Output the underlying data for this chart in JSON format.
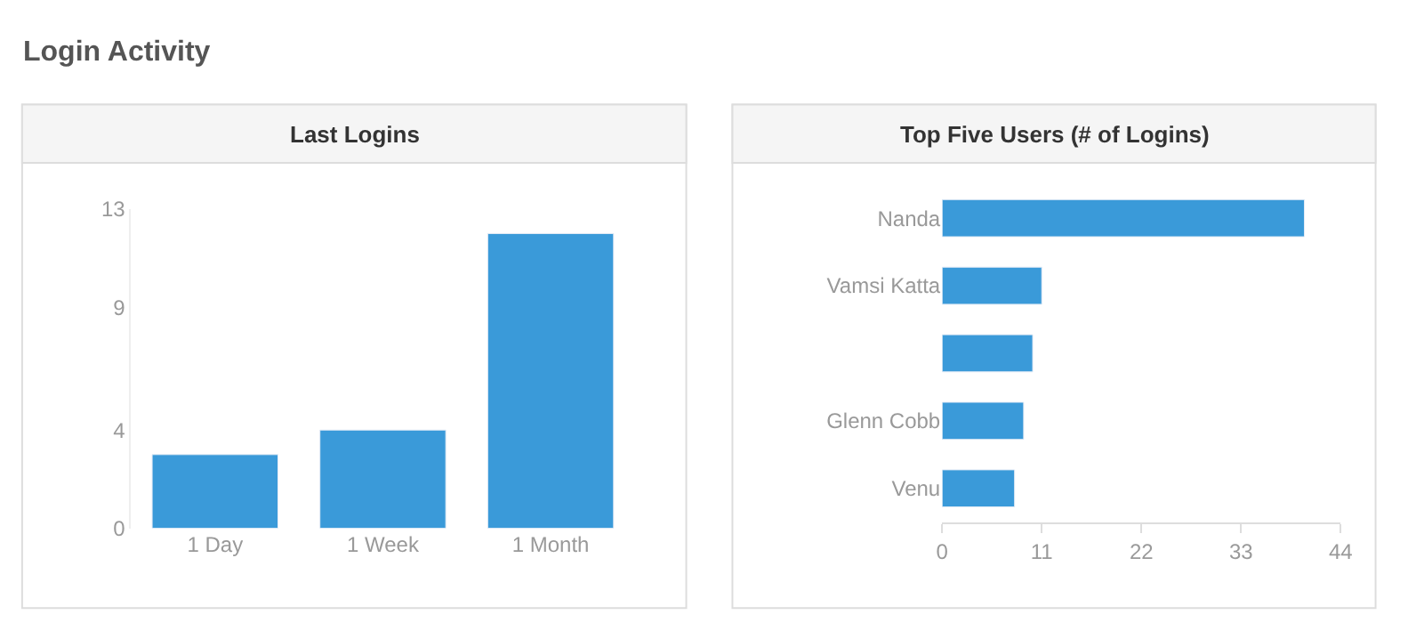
{
  "chart_data": [
    {
      "type": "bar",
      "title": "Login Activity",
      "subtitle": "Last Logins",
      "categories": [
        "1 Day",
        "1 Week",
        "1 Month"
      ],
      "values": [
        3,
        4,
        12
      ],
      "color": "#3a9ad9",
      "ylim": [
        0,
        13
      ],
      "yticks": [
        0,
        4,
        9,
        13
      ],
      "grid": false
    },
    {
      "type": "bar",
      "orientation": "horizontal",
      "title": "Top Five Users (# of Logins)",
      "categories": [
        "Nanda",
        "Vamsi Katta",
        null,
        "Glenn Cobb",
        "Venu"
      ],
      "values": [
        40,
        11,
        10,
        9,
        8
      ],
      "color": "#3a9ad9",
      "xlim": [
        0,
        44
      ],
      "xticks": [
        0,
        11,
        22,
        33,
        44
      ],
      "grid": false
    }
  ]
}
